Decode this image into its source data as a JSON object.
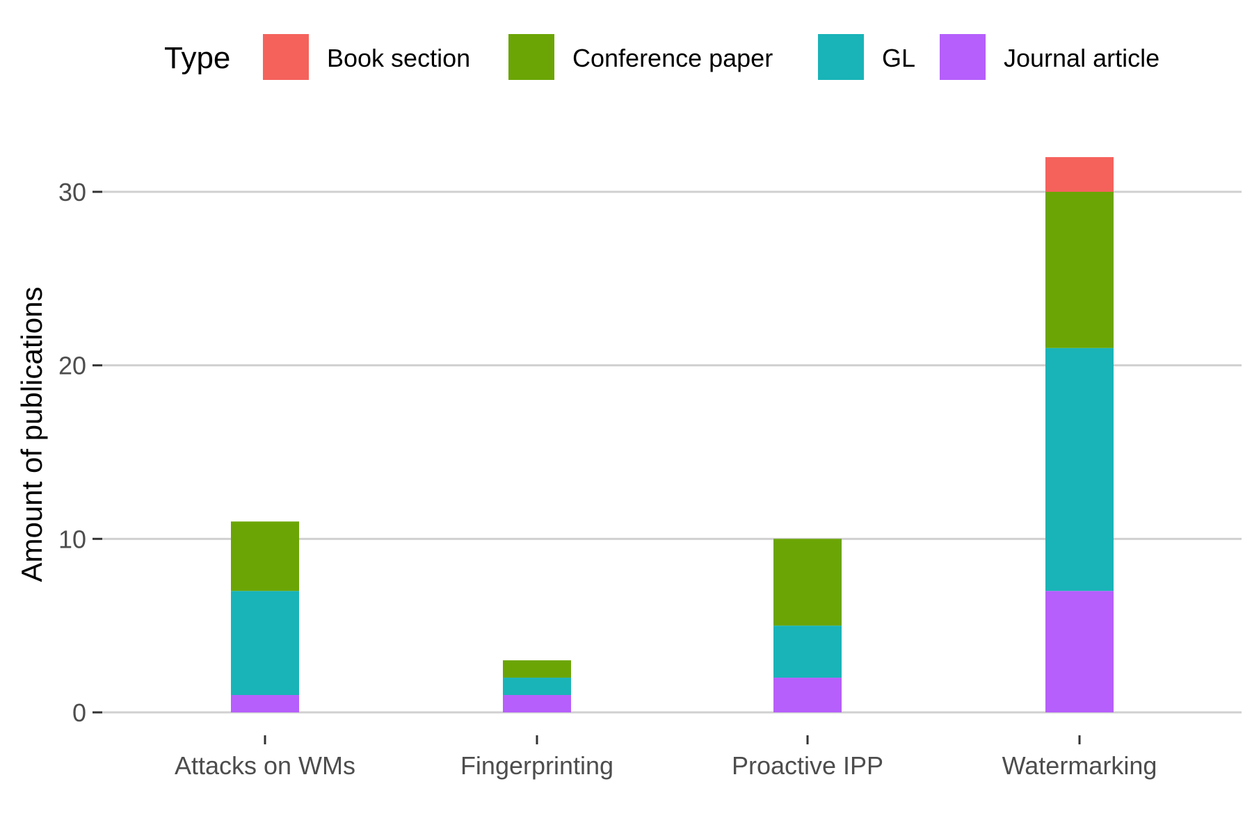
{
  "chart_data": {
    "type": "bar",
    "stacked": true,
    "categories": [
      "Attacks on WMs",
      "Fingerprinting",
      "Proactive IPP",
      "Watermarking"
    ],
    "series": [
      {
        "name": "Journal article",
        "color": "#b65ffc",
        "values": [
          1,
          1,
          2,
          7
        ]
      },
      {
        "name": "GL",
        "color": "#19b4b8",
        "values": [
          6,
          1,
          3,
          14
        ]
      },
      {
        "name": "Conference paper",
        "color": "#6ba505",
        "values": [
          4,
          1,
          5,
          9
        ]
      },
      {
        "name": "Book section",
        "color": "#f5625c",
        "values": [
          0,
          0,
          0,
          2
        ]
      }
    ],
    "legend": {
      "title": "Type",
      "position": "top",
      "order": [
        "Book section",
        "Conference paper",
        "GL",
        "Journal article"
      ]
    },
    "title": "",
    "xlabel": "",
    "ylabel": "Amount of publications",
    "ylim": [
      0,
      32
    ],
    "yticks": [
      0,
      10,
      20,
      30
    ],
    "grid": true
  }
}
